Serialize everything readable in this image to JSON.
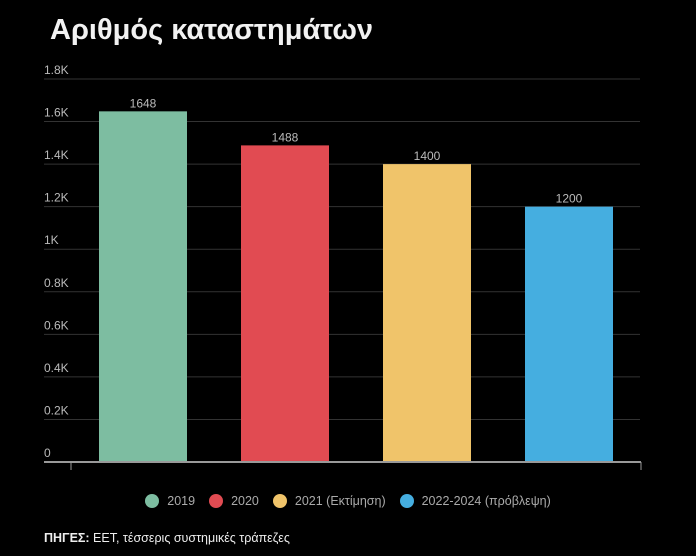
{
  "chart_data": {
    "type": "bar",
    "title": "Αριθμός καταστημάτων",
    "categories": [
      "2019",
      "2020",
      "2021 (Εκτίμηση)",
      "2022-2024 (πρόβλεψη)"
    ],
    "values": [
      1648,
      1488,
      1400,
      1200
    ],
    "value_labels": [
      "1648",
      "1488",
      "1400",
      "1200"
    ],
    "colors": [
      "#7dbda1",
      "#e14b52",
      "#f0c46a",
      "#45aee0"
    ],
    "ylim": [
      0,
      1800
    ],
    "yticks": [
      0,
      200,
      400,
      600,
      800,
      1000,
      1200,
      1400,
      1600,
      1800
    ],
    "ytick_labels": [
      "0",
      "0.2K",
      "0.4K",
      "0.6K",
      "0.8K",
      "1K",
      "1.2K",
      "1.4K",
      "1.6K",
      "1.8K"
    ],
    "xlabel": "",
    "ylabel": "",
    "grid": true,
    "legend_placement": "bottom"
  },
  "source": {
    "label": "ΠΗΓΕΣ:",
    "text": " ΕΕΤ, τέσσερις συστημικές τράπεζες"
  }
}
